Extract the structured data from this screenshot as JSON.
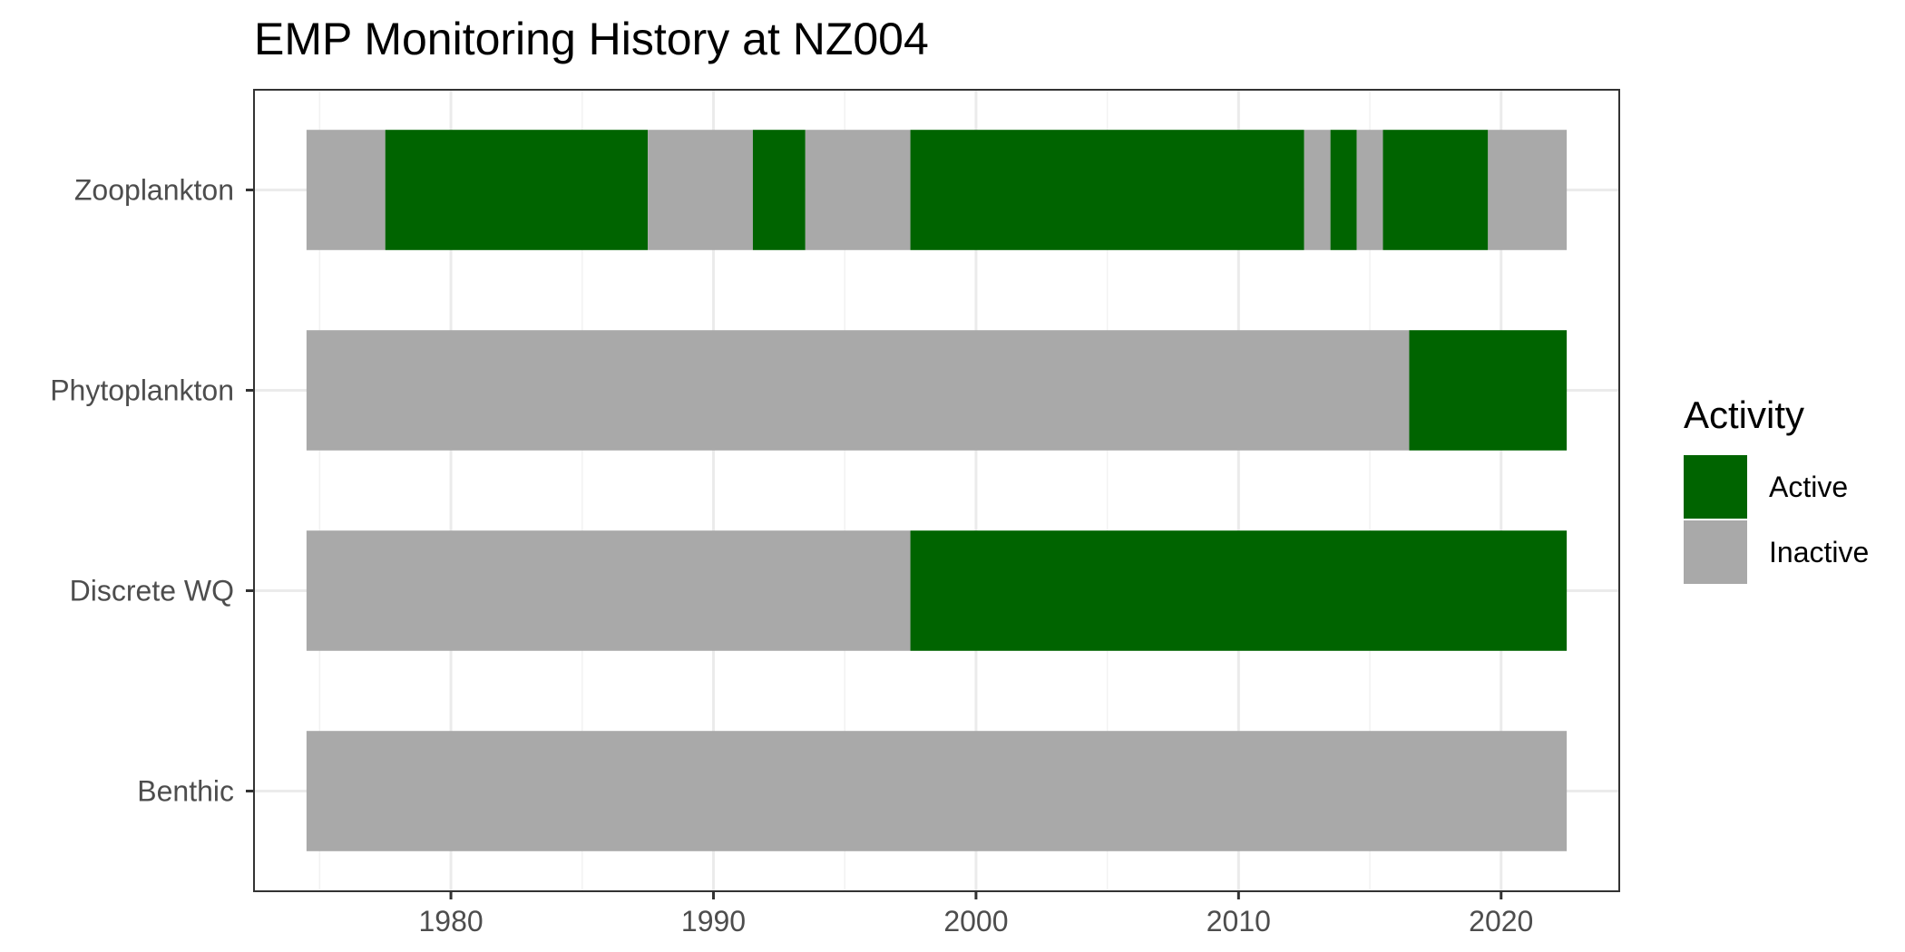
{
  "chart_data": {
    "type": "bar",
    "orientation": "horizontal",
    "title": "EMP Monitoring History at NZ004",
    "xlabel": "",
    "ylabel": "",
    "xlim": [
      1972.5,
      2024.5
    ],
    "x_ticks": [
      1980,
      1990,
      2000,
      2010,
      2020
    ],
    "grid": true,
    "legend_position": "right",
    "legend": {
      "title": "Activity",
      "items": [
        {
          "name": "Active",
          "color": "#006400"
        },
        {
          "name": "Inactive",
          "color": "#a9a9a9"
        }
      ]
    },
    "categories": [
      "Zooplankton",
      "Phytoplankton",
      "Discrete WQ",
      "Benthic"
    ],
    "series": [
      {
        "category": "Zooplankton",
        "segments": [
          {
            "start": 1974.5,
            "end": 1977.5,
            "activity": "Inactive"
          },
          {
            "start": 1977.5,
            "end": 1987.5,
            "activity": "Active"
          },
          {
            "start": 1987.5,
            "end": 1991.5,
            "activity": "Inactive"
          },
          {
            "start": 1991.5,
            "end": 1993.5,
            "activity": "Active"
          },
          {
            "start": 1993.5,
            "end": 1997.5,
            "activity": "Inactive"
          },
          {
            "start": 1997.5,
            "end": 2012.5,
            "activity": "Active"
          },
          {
            "start": 2012.5,
            "end": 2013.5,
            "activity": "Inactive"
          },
          {
            "start": 2013.5,
            "end": 2014.5,
            "activity": "Active"
          },
          {
            "start": 2014.5,
            "end": 2015.5,
            "activity": "Inactive"
          },
          {
            "start": 2015.5,
            "end": 2019.5,
            "activity": "Active"
          },
          {
            "start": 2019.5,
            "end": 2022.5,
            "activity": "Inactive"
          }
        ]
      },
      {
        "category": "Phytoplankton",
        "segments": [
          {
            "start": 1974.5,
            "end": 2016.5,
            "activity": "Inactive"
          },
          {
            "start": 2016.5,
            "end": 2022.5,
            "activity": "Active"
          }
        ]
      },
      {
        "category": "Discrete WQ",
        "segments": [
          {
            "start": 1974.5,
            "end": 1997.5,
            "activity": "Inactive"
          },
          {
            "start": 1997.5,
            "end": 2022.5,
            "activity": "Active"
          }
        ]
      },
      {
        "category": "Benthic",
        "segments": [
          {
            "start": 1974.5,
            "end": 2022.5,
            "activity": "Inactive"
          }
        ]
      }
    ]
  }
}
